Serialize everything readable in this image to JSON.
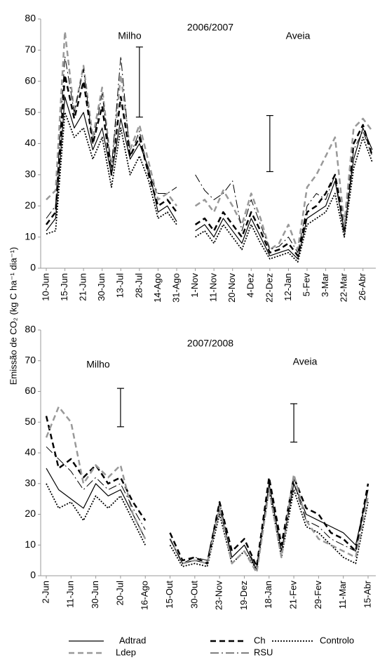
{
  "chart_data": [
    {
      "type": "line",
      "title": "2006/2007",
      "y_label": "Emissão de CO₂ (kg C ha⁻¹ dia⁻¹)",
      "annotations": [
        "Milho",
        "Aveia"
      ],
      "categories": [
        "10-Jun",
        null,
        "15-Jun",
        null,
        "21-Jun",
        null,
        "30-Jun",
        null,
        "13-Jul",
        null,
        "28-Jul",
        null,
        "14-Ago",
        null,
        "31-Ago",
        null,
        "1-Nov",
        null,
        "11-Nov",
        null,
        "20-Nov",
        null,
        "4-Dez",
        null,
        "22-Dez",
        null,
        "12-Jan",
        null,
        "5-Fev",
        null,
        "3-Mar",
        null,
        "22-Mar",
        null,
        "26-Abr",
        null
      ],
      "ylim": [
        0,
        80
      ],
      "yticks": [
        0,
        10,
        20,
        30,
        40,
        50,
        60,
        70,
        80
      ],
      "error_bars": [
        {
          "at": "28-Jul",
          "value": 59.75,
          "error": 11.25
        },
        {
          "at": "22-Dez",
          "value": 40,
          "error": 9
        }
      ],
      "series": [
        {
          "name": "Adtrad",
          "color": "#000000",
          "dash": "solid",
          "width": 1.2,
          "values": [
            12,
            16,
            55,
            45,
            50,
            38,
            45,
            30,
            48,
            35,
            40,
            32,
            18,
            20,
            15,
            null,
            12,
            14,
            10,
            16,
            12,
            8,
            16,
            10,
            4,
            5,
            6,
            3,
            16,
            18,
            20,
            28,
            12,
            35,
            45,
            38
          ]
        },
        {
          "name": "Ch",
          "color": "#000000",
          "dash": "dashed",
          "width": 2.5,
          "values": [
            14,
            18,
            62,
            48,
            60,
            40,
            52,
            30,
            55,
            36,
            42,
            30,
            20,
            22,
            18,
            null,
            14,
            16,
            12,
            18,
            14,
            10,
            18,
            12,
            5,
            6,
            8,
            4,
            18,
            20,
            24,
            30,
            14,
            40,
            46,
            36
          ]
        },
        {
          "name": "Controlo",
          "color": "#000000",
          "dash": "dotted",
          "width": 1.8,
          "values": [
            11,
            12,
            50,
            42,
            45,
            35,
            42,
            26,
            45,
            30,
            36,
            28,
            16,
            18,
            14,
            null,
            10,
            12,
            8,
            14,
            10,
            6,
            14,
            8,
            3,
            4,
            5,
            2,
            14,
            16,
            18,
            24,
            10,
            32,
            42,
            34
          ]
        },
        {
          "name": "Ldep",
          "color": "#999999",
          "dash": "dashed",
          "width": 2.5,
          "values": [
            22,
            25,
            76,
            50,
            65,
            42,
            58,
            32,
            62,
            38,
            46,
            34,
            22,
            24,
            20,
            null,
            20,
            22,
            18,
            25,
            20,
            14,
            24,
            16,
            6,
            8,
            14,
            6,
            26,
            30,
            36,
            42,
            14,
            45,
            48,
            44
          ]
        },
        {
          "name": "RSU",
          "color": "#000000",
          "dash": "longdash",
          "width": 1,
          "values": [
            16,
            20,
            68,
            50,
            64,
            40,
            56,
            32,
            68,
            36,
            44,
            30,
            24,
            24,
            26,
            null,
            30,
            25,
            22,
            24,
            28,
            12,
            22,
            14,
            6,
            7,
            10,
            5,
            20,
            24,
            22,
            30,
            10,
            38,
            44,
            36
          ]
        }
      ]
    },
    {
      "type": "line",
      "title": "2007/2008",
      "annotations": [
        "Milho",
        "Aveia"
      ],
      "categories": [
        "2-Jun",
        null,
        "11-Jun",
        null,
        "30-Jun",
        null,
        "20-Jul",
        null,
        "16-Ago",
        null,
        "15-Out",
        null,
        "30-Out",
        null,
        "23-Nov",
        null,
        "19-Dez",
        null,
        "18-Jan",
        null,
        "21-Fev",
        null,
        "29-Fev",
        null,
        "11-Mar",
        null,
        "15-Abr"
      ],
      "ylim": [
        0,
        80
      ],
      "yticks": [
        0,
        10,
        20,
        30,
        40,
        50,
        60,
        70,
        80
      ],
      "error_bars": [
        {
          "at": "20-Jul",
          "value": 54.75,
          "error": 6.25
        },
        {
          "at": "21-Fev",
          "value": 49.75,
          "error": 6.25
        }
      ],
      "series": [
        {
          "color": "#000000",
          "dash": "solid",
          "width": 1.2,
          "values": [
            35,
            28,
            25,
            22,
            30,
            26,
            28,
            20,
            12,
            null,
            12,
            4,
            5,
            4,
            22,
            6,
            10,
            2,
            30,
            8,
            30,
            20,
            18,
            16,
            14,
            10,
            28
          ]
        },
        {
          "color": "#000000",
          "dash": "dashed",
          "width": 2.5,
          "values": [
            52,
            35,
            38,
            32,
            36,
            30,
            32,
            24,
            18,
            null,
            14,
            5,
            6,
            4,
            24,
            8,
            12,
            3,
            32,
            10,
            32,
            22,
            20,
            14,
            12,
            8,
            30
          ]
        },
        {
          "color": "#000000",
          "dash": "dotted",
          "width": 1.8,
          "values": [
            30,
            22,
            24,
            18,
            26,
            22,
            26,
            18,
            10,
            null,
            10,
            3,
            4,
            3,
            20,
            4,
            8,
            2,
            28,
            6,
            28,
            16,
            14,
            10,
            6,
            4,
            24
          ]
        },
        {
          "color": "#999999",
          "dash": "dashed",
          "width": 2.5,
          "values": [
            45,
            55,
            50,
            30,
            36,
            32,
            36,
            20,
            12,
            null,
            12,
            4,
            5,
            4,
            22,
            4,
            8,
            1,
            28,
            6,
            33,
            18,
            12,
            10,
            8,
            6,
            26
          ]
        },
        {
          "color": "#000000",
          "dash": "longdash",
          "width": 1,
          "values": [
            42,
            38,
            34,
            28,
            32,
            28,
            30,
            22,
            15,
            null,
            12,
            4,
            6,
            5,
            24,
            6,
            10,
            3,
            30,
            8,
            30,
            18,
            16,
            12,
            10,
            8,
            28
          ]
        }
      ]
    }
  ]
}
